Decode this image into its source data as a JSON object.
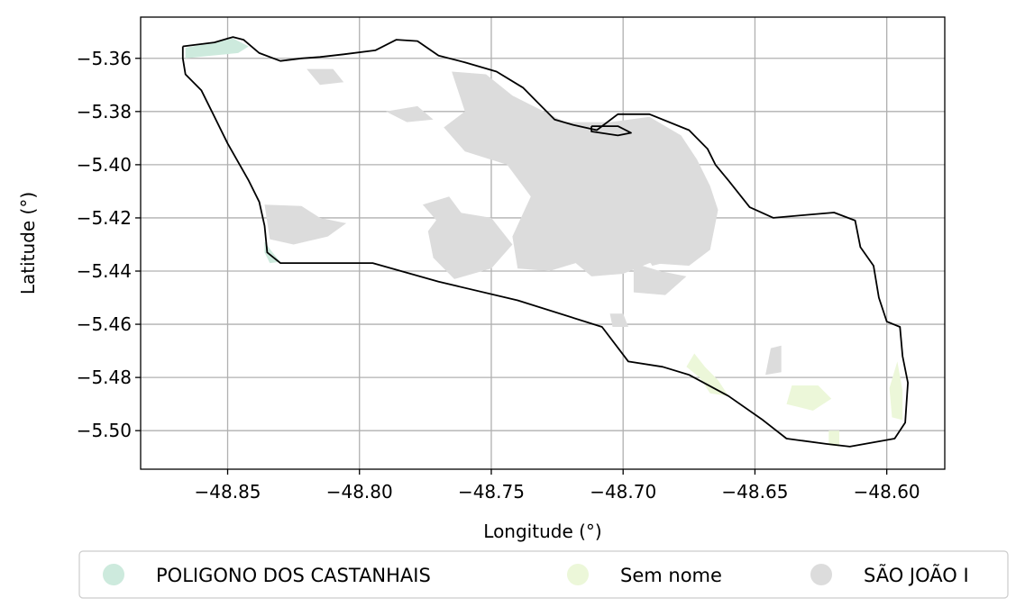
{
  "map": {
    "xlabel": "Longitude (°)",
    "ylabel": "Latitude (°)",
    "xlim": [
      -48.883,
      -48.578
    ],
    "ylim": [
      -5.5145,
      -5.3445
    ],
    "x_ticks": [
      -48.85,
      -48.8,
      -48.75,
      -48.7,
      -48.65,
      -48.6
    ],
    "y_ticks": [
      -5.36,
      -5.38,
      -5.4,
      -5.42,
      -5.44,
      -5.46,
      -5.48,
      -5.5
    ],
    "x_tick_labels": [
      "−48.85",
      "−48.80",
      "−48.75",
      "−48.70",
      "−48.65",
      "−48.60"
    ],
    "y_tick_labels": [
      "−5.36",
      "−5.38",
      "−5.40",
      "−5.42",
      "−5.44",
      "−5.46",
      "−5.48",
      "−5.50"
    ],
    "grid": true
  },
  "legend": {
    "placement": "bottom-center",
    "items": [
      {
        "label": "POLIGONO DOS CASTANHAIS",
        "color": "#cdeadd"
      },
      {
        "label": "Sem nome",
        "color": "#ecf7d9"
      },
      {
        "label": "SÃO JOÃO I",
        "color": "#dcdcdc"
      }
    ]
  },
  "boundary": [
    [
      -48.867,
      -5.3555
    ],
    [
      -48.855,
      -5.354
    ],
    [
      -48.848,
      -5.352
    ],
    [
      -48.844,
      -5.353
    ],
    [
      -48.838,
      -5.358
    ],
    [
      -48.83,
      -5.361
    ],
    [
      -48.822,
      -5.36
    ],
    [
      -48.815,
      -5.3595
    ],
    [
      -48.806,
      -5.3585
    ],
    [
      -48.794,
      -5.357
    ],
    [
      -48.786,
      -5.353
    ],
    [
      -48.778,
      -5.3535
    ],
    [
      -48.77,
      -5.359
    ],
    [
      -48.76,
      -5.3615
    ],
    [
      -48.748,
      -5.365
    ],
    [
      -48.738,
      -5.371
    ],
    [
      -48.732,
      -5.377
    ],
    [
      -48.726,
      -5.383
    ],
    [
      -48.719,
      -5.385
    ],
    [
      -48.71,
      -5.387
    ],
    [
      -48.702,
      -5.381
    ],
    [
      -48.69,
      -5.381
    ],
    [
      -48.675,
      -5.387
    ],
    [
      -48.668,
      -5.394
    ],
    [
      -48.665,
      -5.4
    ],
    [
      -48.66,
      -5.406
    ],
    [
      -48.652,
      -5.416
    ],
    [
      -48.643,
      -5.42
    ],
    [
      -48.632,
      -5.419
    ],
    [
      -48.62,
      -5.418
    ],
    [
      -48.612,
      -5.421
    ],
    [
      -48.61,
      -5.431
    ],
    [
      -48.605,
      -5.438
    ],
    [
      -48.603,
      -5.45
    ],
    [
      -48.6,
      -5.459
    ],
    [
      -48.595,
      -5.461
    ],
    [
      -48.594,
      -5.472
    ],
    [
      -48.592,
      -5.482
    ],
    [
      -48.593,
      -5.497
    ],
    [
      -48.597,
      -5.503
    ],
    [
      -48.614,
      -5.506
    ],
    [
      -48.623,
      -5.505
    ],
    [
      -48.638,
      -5.503
    ],
    [
      -48.647,
      -5.496
    ],
    [
      -48.66,
      -5.487
    ],
    [
      -48.675,
      -5.479
    ],
    [
      -48.685,
      -5.476
    ],
    [
      -48.698,
      -5.474
    ],
    [
      -48.708,
      -5.461
    ],
    [
      -48.74,
      -5.451
    ],
    [
      -48.77,
      -5.444
    ],
    [
      -48.795,
      -5.437
    ],
    [
      -48.83,
      -5.437
    ],
    [
      -48.835,
      -5.433
    ],
    [
      -48.836,
      -5.423
    ],
    [
      -48.838,
      -5.414
    ],
    [
      -48.842,
      -5.406
    ],
    [
      -48.846,
      -5.399
    ],
    [
      -48.85,
      -5.392
    ],
    [
      -48.856,
      -5.38
    ],
    [
      -48.86,
      -5.372
    ],
    [
      -48.866,
      -5.366
    ],
    [
      -48.867,
      -5.36
    ],
    [
      -48.867,
      -5.3555
    ]
  ],
  "boundary_inner": [
    [
      -48.712,
      -5.3855
    ],
    [
      -48.702,
      -5.3855
    ],
    [
      -48.697,
      -5.388
    ],
    [
      -48.702,
      -5.389
    ],
    [
      -48.712,
      -5.3875
    ],
    [
      -48.712,
      -5.3855
    ]
  ],
  "regions": [
    {
      "legend": 0,
      "coords": [
        [
          -48.866,
          -5.356
        ],
        [
          -48.855,
          -5.354
        ],
        [
          -48.848,
          -5.3525
        ],
        [
          -48.842,
          -5.3555
        ],
        [
          -48.846,
          -5.358
        ],
        [
          -48.856,
          -5.359
        ],
        [
          -48.866,
          -5.36
        ]
      ]
    },
    {
      "legend": 0,
      "coords": [
        [
          -48.836,
          -5.429
        ],
        [
          -48.833,
          -5.433
        ],
        [
          -48.83,
          -5.4365
        ],
        [
          -48.834,
          -5.437
        ],
        [
          -48.836,
          -5.433
        ]
      ]
    },
    {
      "legend": 1,
      "coords": [
        [
          -48.673,
          -5.471
        ],
        [
          -48.669,
          -5.476
        ],
        [
          -48.664,
          -5.481
        ],
        [
          -48.66,
          -5.487
        ],
        [
          -48.667,
          -5.486
        ],
        [
          -48.671,
          -5.48
        ],
        [
          -48.676,
          -5.476
        ]
      ]
    },
    {
      "legend": 1,
      "coords": [
        [
          -48.636,
          -5.483
        ],
        [
          -48.626,
          -5.483
        ],
        [
          -48.621,
          -5.488
        ],
        [
          -48.628,
          -5.4925
        ],
        [
          -48.638,
          -5.49
        ]
      ]
    },
    {
      "legend": 1,
      "coords": [
        [
          -48.596,
          -5.474
        ],
        [
          -48.594,
          -5.485
        ],
        [
          -48.594,
          -5.496
        ],
        [
          -48.598,
          -5.495
        ],
        [
          -48.599,
          -5.484
        ]
      ]
    },
    {
      "legend": 1,
      "coords": [
        [
          -48.622,
          -5.5
        ],
        [
          -48.618,
          -5.5
        ],
        [
          -48.618,
          -5.506
        ],
        [
          -48.622,
          -5.5055
        ]
      ]
    },
    {
      "legend": 2,
      "coords": [
        [
          -48.836,
          -5.415
        ],
        [
          -48.822,
          -5.4155
        ],
        [
          -48.815,
          -5.42
        ],
        [
          -48.805,
          -5.422
        ],
        [
          -48.812,
          -5.427
        ],
        [
          -48.825,
          -5.43
        ],
        [
          -48.834,
          -5.428
        ]
      ]
    },
    {
      "legend": 2,
      "coords": [
        [
          -48.82,
          -5.364
        ],
        [
          -48.81,
          -5.364
        ],
        [
          -48.806,
          -5.369
        ],
        [
          -48.815,
          -5.37
        ]
      ]
    },
    {
      "legend": 2,
      "coords": [
        [
          -48.79,
          -5.38
        ],
        [
          -48.778,
          -5.378
        ],
        [
          -48.772,
          -5.383
        ],
        [
          -48.782,
          -5.384
        ]
      ]
    },
    {
      "legend": 2,
      "coords": [
        [
          -48.776,
          -5.415
        ],
        [
          -48.766,
          -5.412
        ],
        [
          -48.76,
          -5.42
        ],
        [
          -48.769,
          -5.423
        ]
      ]
    },
    {
      "legend": 2,
      "coords": [
        [
          -48.748,
          -5.379
        ],
        [
          -48.744,
          -5.376
        ],
        [
          -48.742,
          -5.383
        ],
        [
          -48.746,
          -5.386
        ]
      ]
    },
    {
      "legend": 2,
      "coords": [
        [
          -48.765,
          -5.365
        ],
        [
          -48.752,
          -5.366
        ],
        [
          -48.742,
          -5.374
        ],
        [
          -48.732,
          -5.379
        ],
        [
          -48.722,
          -5.384
        ],
        [
          -48.705,
          -5.384
        ],
        [
          -48.69,
          -5.382
        ],
        [
          -48.678,
          -5.389
        ],
        [
          -48.672,
          -5.398
        ],
        [
          -48.667,
          -5.408
        ],
        [
          -48.664,
          -5.417
        ],
        [
          -48.667,
          -5.432
        ],
        [
          -48.675,
          -5.438
        ],
        [
          -48.69,
          -5.437
        ],
        [
          -48.7,
          -5.441
        ],
        [
          -48.712,
          -5.442
        ],
        [
          -48.718,
          -5.437
        ],
        [
          -48.728,
          -5.44
        ],
        [
          -48.74,
          -5.439
        ],
        [
          -48.742,
          -5.427
        ],
        [
          -48.735,
          -5.412
        ],
        [
          -48.744,
          -5.4
        ],
        [
          -48.76,
          -5.395
        ],
        [
          -48.768,
          -5.386
        ],
        [
          -48.76,
          -5.38
        ]
      ]
    },
    {
      "legend": 2,
      "coords": [
        [
          -48.768,
          -5.417
        ],
        [
          -48.75,
          -5.42
        ],
        [
          -48.742,
          -5.43
        ],
        [
          -48.75,
          -5.439
        ],
        [
          -48.764,
          -5.443
        ],
        [
          -48.772,
          -5.435
        ],
        [
          -48.774,
          -5.425
        ]
      ]
    },
    {
      "legend": 2,
      "coords": [
        [
          -48.696,
          -5.437
        ],
        [
          -48.686,
          -5.44
        ],
        [
          -48.676,
          -5.442
        ],
        [
          -48.684,
          -5.449
        ],
        [
          -48.696,
          -5.448
        ]
      ]
    },
    {
      "legend": 2,
      "coords": [
        [
          -48.705,
          -5.456
        ],
        [
          -48.7,
          -5.456
        ],
        [
          -48.698,
          -5.461
        ],
        [
          -48.704,
          -5.461
        ]
      ]
    },
    {
      "legend": 2,
      "coords": [
        [
          -48.644,
          -5.469
        ],
        [
          -48.64,
          -5.468
        ],
        [
          -48.64,
          -5.478
        ],
        [
          -48.646,
          -5.479
        ]
      ]
    },
    {
      "legend": 2,
      "coords": [
        [
          -48.691,
          -5.434
        ],
        [
          -48.685,
          -5.43
        ],
        [
          -48.681,
          -5.436
        ],
        [
          -48.689,
          -5.438
        ]
      ]
    }
  ]
}
